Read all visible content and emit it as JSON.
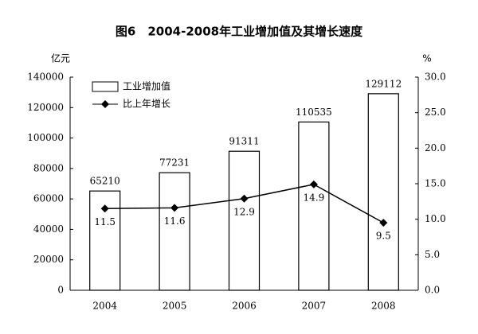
{
  "chart_data": {
    "type": "bar",
    "title": "图6　2004-2008年工业增加值及其增长速度",
    "y_label": "亿元",
    "y2_label": "%",
    "categories": [
      "2004",
      "2005",
      "2006",
      "2007",
      "2008"
    ],
    "series": [
      {
        "name": "工业增加值",
        "type": "bar",
        "color": "#ffffff",
        "values": [
          65210,
          77231,
          91311,
          110535,
          129112
        ]
      },
      {
        "name": "比上年增长",
        "type": "line",
        "axis": "y2",
        "color": "#000000",
        "values": [
          11.5,
          11.6,
          12.9,
          14.9,
          9.5
        ]
      }
    ],
    "ylim": [
      0,
      140000
    ],
    "yticks": [
      0,
      20000,
      40000,
      60000,
      80000,
      100000,
      120000,
      140000
    ],
    "y2lim": [
      0,
      30
    ],
    "y2ticks": [
      {
        "value": 0,
        "label": "0.0"
      },
      {
        "value": 5,
        "label": "5.0"
      },
      {
        "value": 10,
        "label": "10.0"
      },
      {
        "value": 15,
        "label": "15.0"
      },
      {
        "value": 20,
        "label": "20.0"
      },
      {
        "value": 25,
        "label": "25.0"
      },
      {
        "value": 30,
        "label": "30.0"
      }
    ],
    "legend": "upper left",
    "grid": false
  }
}
